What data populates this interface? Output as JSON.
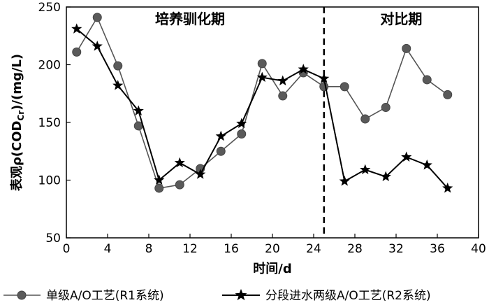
{
  "chart_data": {
    "type": "line",
    "xlabel": "时间/d",
    "ylabel": "表观ρ(COD_Cr)/(mg/L)",
    "ylabel_main": "表观ρ(COD",
    "ylabel_sub": "Cr",
    "ylabel_tail": ")/(mg/L)",
    "xlim": [
      0,
      40
    ],
    "ylim": [
      50,
      250
    ],
    "xticks": [
      0,
      4,
      8,
      12,
      16,
      20,
      24,
      28,
      32,
      36,
      40
    ],
    "yticks": [
      50,
      100,
      150,
      200,
      250
    ],
    "grid": false,
    "legend_position": "bottom",
    "divider_x": 25,
    "annotations": [
      {
        "text": "培养驯化期",
        "x": 12
      },
      {
        "text": "对比期",
        "x": 32.5
      }
    ],
    "series": [
      {
        "name": "单级A/O工艺(R1系统)",
        "marker": "circle",
        "color": "#555555",
        "x": [
          1,
          3,
          5,
          7,
          9,
          11,
          13,
          15,
          17,
          19,
          21,
          23,
          25,
          27,
          29,
          31,
          33,
          35,
          37
        ],
        "y": [
          211,
          241,
          199,
          147,
          93,
          96,
          110,
          125,
          140,
          201,
          173,
          193,
          181,
          181,
          153,
          163,
          214,
          187,
          174
        ]
      },
      {
        "name": "分段进水两级A/O工艺(R2系统)",
        "marker": "star",
        "color": "#000000",
        "x": [
          1,
          3,
          5,
          7,
          9,
          11,
          13,
          15,
          17,
          19,
          21,
          23,
          25,
          27,
          29,
          31,
          33,
          35,
          37
        ],
        "y": [
          231,
          216,
          182,
          160,
          100,
          115,
          105,
          138,
          149,
          189,
          186,
          196,
          188,
          99,
          109,
          103,
          120,
          113,
          93
        ]
      }
    ]
  }
}
